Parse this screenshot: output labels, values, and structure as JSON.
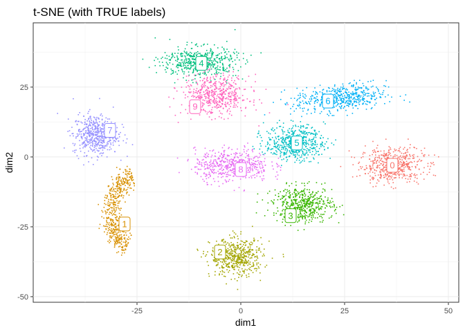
{
  "chart_data": {
    "type": "scatter",
    "title": "t-SNE (with TRUE labels)",
    "xlabel": "dim1",
    "ylabel": "dim2",
    "xlim": [
      -50,
      52.5
    ],
    "ylim": [
      -52,
      48
    ],
    "x_ticks": [
      -25,
      0,
      25,
      50
    ],
    "y_ticks": [
      -50,
      -25,
      0,
      25
    ],
    "x_tick_labels": [
      "-25",
      "0",
      "25",
      "50"
    ],
    "y_tick_labels": [
      "-50",
      "-25",
      "0",
      "25"
    ],
    "grid": true,
    "legend": "none",
    "series": [
      {
        "label": "0",
        "color": "#F8766D",
        "center": [
          36.5,
          -3
        ],
        "spread": [
          8.5,
          7
        ],
        "label_pos": [
          36.5,
          -3
        ]
      },
      {
        "label": "1",
        "color": "#D89000",
        "center": [
          -27,
          -20
        ],
        "spread": [
          6,
          11
        ],
        "label_pos": [
          -28,
          -24
        ]
      },
      {
        "label": "2",
        "color": "#A3A500",
        "center": [
          -1,
          -36
        ],
        "spread": [
          7,
          7.5
        ],
        "label_pos": [
          -5,
          -34
        ]
      },
      {
        "label": "3",
        "color": "#39B600",
        "center": [
          15,
          -17
        ],
        "spread": [
          8,
          7
        ],
        "label_pos": [
          12,
          -21
        ]
      },
      {
        "label": "4",
        "color": "#00BF7D",
        "center": [
          -10,
          34
        ],
        "spread": [
          10,
          6
        ],
        "label_pos": [
          -9.5,
          33.5
        ]
      },
      {
        "label": "5",
        "color": "#00BFC4",
        "center": [
          13,
          5
        ],
        "spread": [
          8,
          7
        ],
        "label_pos": [
          13.5,
          5
        ]
      },
      {
        "label": "6",
        "color": "#00B0F6",
        "center": [
          24,
          21
        ],
        "spread": [
          10,
          4.5
        ],
        "label_pos": [
          21,
          20
        ]
      },
      {
        "label": "7",
        "color": "#9590FF",
        "center": [
          -35,
          8
        ],
        "spread": [
          6,
          8
        ],
        "label_pos": [
          -31.5,
          9.5
        ]
      },
      {
        "label": "8",
        "color": "#E76BF3",
        "center": [
          -2,
          -3
        ],
        "spread": [
          10,
          6.5
        ],
        "label_pos": [
          0,
          -4.5
        ]
      },
      {
        "label": "9",
        "color": "#FF62BC",
        "center": [
          -6,
          22
        ],
        "spread": [
          9,
          8
        ],
        "label_pos": [
          -11,
          18
        ]
      }
    ]
  }
}
